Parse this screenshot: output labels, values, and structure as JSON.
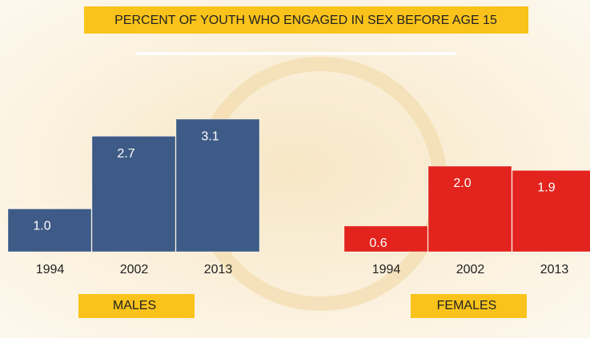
{
  "chart_data": {
    "type": "bar",
    "title": "PERCENT OF YOUTH WHO ENGAGED IN SEX BEFORE AGE 15",
    "groups": [
      {
        "name": "MALES",
        "color": "#3e5b87",
        "categories": [
          "1994",
          "2002",
          "2013"
        ],
        "values": [
          1.0,
          2.7,
          3.1
        ],
        "value_labels": [
          "1.0",
          "2.7",
          "3.1"
        ]
      },
      {
        "name": "FEMALES",
        "color": "#e2231e",
        "categories": [
          "1994",
          "2002",
          "2013"
        ],
        "values": [
          0.6,
          2.0,
          1.9
        ],
        "value_labels": [
          "0.6",
          "2.0",
          "1.9"
        ]
      }
    ]
  }
}
